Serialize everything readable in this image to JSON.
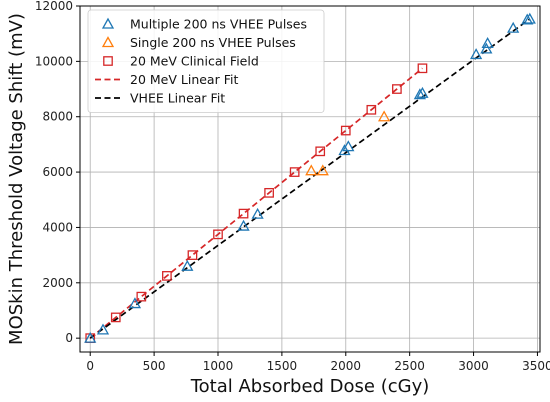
{
  "chart_data": {
    "type": "scatter",
    "xlabel": "Total Absorbed Dose (cGy)",
    "ylabel": "MOSkin Threshold Voltage Shift (mV)",
    "xlim": [
      -80,
      3520
    ],
    "ylim": [
      -500,
      12000
    ],
    "xticks": [
      0,
      500,
      1000,
      1500,
      2000,
      2500,
      3000,
      3500
    ],
    "yticks": [
      0,
      2000,
      4000,
      6000,
      8000,
      10000,
      12000
    ],
    "grid": true,
    "legend_position": "top-left",
    "series": [
      {
        "name": "Multiple 200 ns VHEE Pulses",
        "marker": "triangle",
        "color": "#1f77b4",
        "points": [
          [
            0,
            0
          ],
          [
            100,
            300
          ],
          [
            350,
            1250
          ],
          [
            760,
            2600
          ],
          [
            1200,
            4050
          ],
          [
            1310,
            4480
          ],
          [
            1990,
            6780
          ],
          [
            2020,
            6920
          ],
          [
            2580,
            8800
          ],
          [
            2600,
            8850
          ],
          [
            3020,
            10250
          ],
          [
            3100,
            10450
          ],
          [
            3110,
            10650
          ],
          [
            3310,
            11200
          ],
          [
            3420,
            11500
          ],
          [
            3440,
            11530
          ]
        ]
      },
      {
        "name": "Single 200 ns VHEE Pulses",
        "marker": "triangle",
        "color": "#ff7f0e",
        "points": [
          [
            1730,
            6050
          ],
          [
            1820,
            6050
          ],
          [
            2300,
            8000
          ]
        ]
      },
      {
        "name": "20 MeV Clinical Field",
        "marker": "square",
        "color": "#d62728",
        "points": [
          [
            0,
            0
          ],
          [
            200,
            750
          ],
          [
            400,
            1500
          ],
          [
            600,
            2250
          ],
          [
            800,
            3000
          ],
          [
            1000,
            3750
          ],
          [
            1200,
            4500
          ],
          [
            1400,
            5250
          ],
          [
            1600,
            6000
          ],
          [
            1800,
            6750
          ],
          [
            2000,
            7500
          ],
          [
            2200,
            8250
          ],
          [
            2400,
            9000
          ],
          [
            2600,
            9750
          ]
        ]
      },
      {
        "name": "20 MeV Linear Fit",
        "line": "dashed",
        "color": "#d62728",
        "points": [
          [
            0,
            0
          ],
          [
            2600,
            9750
          ]
        ]
      },
      {
        "name": "VHEE Linear Fit",
        "line": "dashed",
        "color": "#000000",
        "points": [
          [
            0,
            0
          ],
          [
            3440,
            11530
          ]
        ]
      }
    ]
  }
}
